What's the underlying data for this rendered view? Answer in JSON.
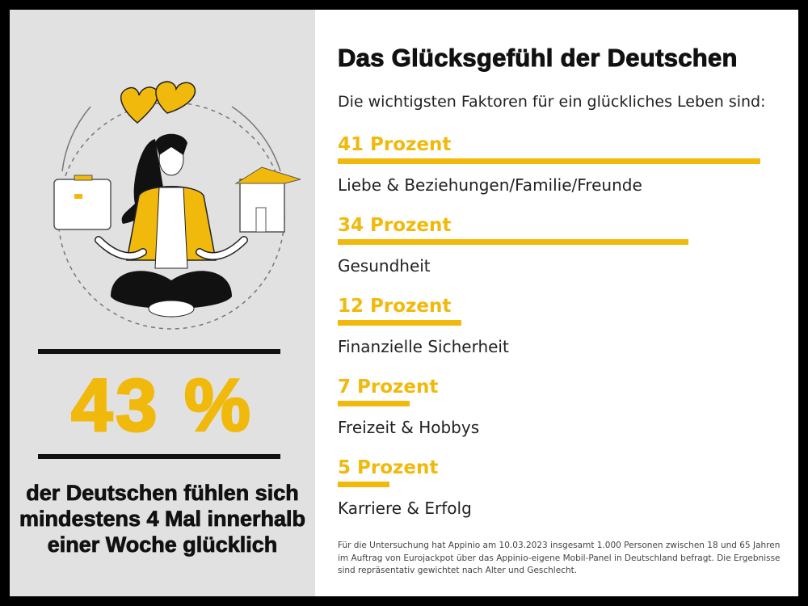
{
  "left_panel": {
    "headline_value": "43 %",
    "headline_text": "der Deutschen fühlen sich mindestens 4 Mal innerhalb einer Woche glücklich",
    "illustration": "meditating-woman-with-hearts-briefcase-house"
  },
  "title": "Das Glücksgefühl der Deutschen",
  "subtitle": "Die wichtigsten Faktoren für ein glückliches Leben sind:",
  "colors": {
    "accent": "#f0b90b",
    "panel": "#e1e1e1",
    "frame": "#000000"
  },
  "chart_data": {
    "type": "bar",
    "orientation": "horizontal",
    "title": "Das Glücksgefühl der Deutschen",
    "categories": [
      "Liebe & Beziehungen/Familie/Freunde",
      "Gesundheit",
      "Finanzielle Sicherheit",
      "Freizeit & Hobbys",
      "Karriere & Erfolg"
    ],
    "values": [
      41,
      34,
      12,
      7,
      5
    ],
    "value_labels": [
      "41 Prozent",
      "34 Prozent",
      "12 Prozent",
      "7 Prozent",
      "5 Prozent"
    ],
    "unit": "Prozent",
    "xlim": [
      0,
      41
    ]
  },
  "footnote": "Für die Untersuchung hat Appinio am 10.03.2023 insgesamt 1.000 Personen zwischen 18 und 65 Jahren im Auftrag von Eurojackpot über das Appinio-eigene Mobil-Panel in Deutschland befragt. Die Ergebnisse sind repräsentativ gewichtet nach Alter und Geschlecht."
}
